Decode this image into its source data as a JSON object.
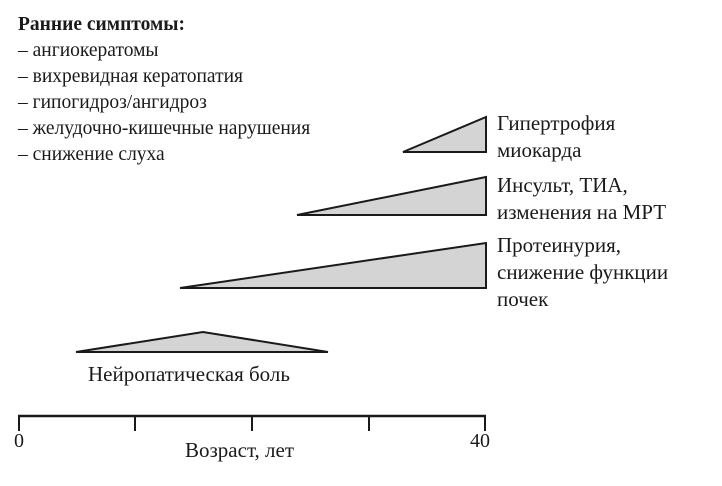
{
  "early_symptoms": {
    "title": "Ранние симптомы:",
    "items": [
      "– ангиокератомы",
      "– вихревидная кератопатия",
      "– гипогидроз/ангидроз",
      "– желудочно-кишечные нарушения",
      "– снижение слуха"
    ]
  },
  "conditions": {
    "hypertrophy": [
      "Гипертрофия",
      "миокарда"
    ],
    "insult": [
      "Инсульт, ТИА,",
      "изменения на МРТ"
    ],
    "proteinuria": [
      "Протеинурия,",
      "снижение функции",
      "почек"
    ],
    "neuropathic": "Нейропатическая боль"
  },
  "axis": {
    "title": "Возраст, лет",
    "tick_min": "0",
    "tick_max": "40"
  },
  "colors": {
    "fill": "#d4d4d4",
    "stroke": "#1a1a1a"
  }
}
